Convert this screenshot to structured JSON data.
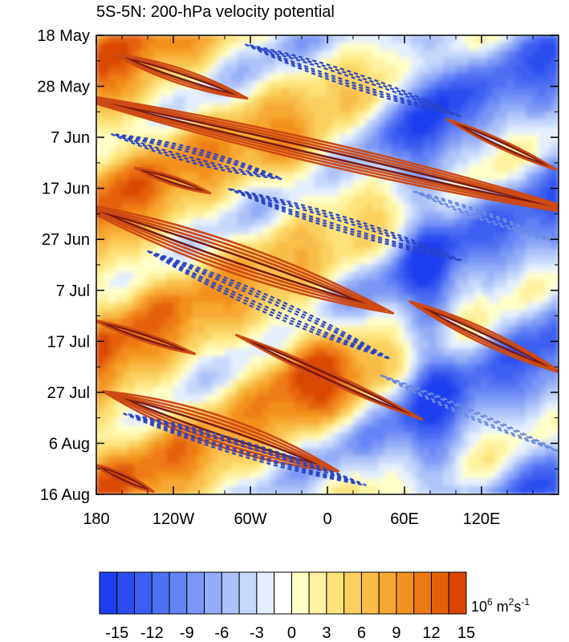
{
  "chart_data": {
    "type": "heatmap",
    "title": "5S-5N: 200-hPa velocity potential",
    "xlabel": "",
    "ylabel": "",
    "x_axis": {
      "ticks": [
        {
          "value": 180,
          "label": "180"
        },
        {
          "value": 240,
          "label": "120W"
        },
        {
          "value": 300,
          "label": "60W"
        },
        {
          "value": 360,
          "label": "0"
        },
        {
          "value": 420,
          "label": "60E"
        },
        {
          "value": 480,
          "label": "120E"
        }
      ],
      "range": [
        180,
        540
      ]
    },
    "y_axis": {
      "ticks": [
        {
          "value": 0,
          "label": "18 May"
        },
        {
          "value": 10,
          "label": "28 May"
        },
        {
          "value": 20,
          "label": "7 Jun"
        },
        {
          "value": 30,
          "label": "17 Jun"
        },
        {
          "value": 40,
          "label": "27 Jun"
        },
        {
          "value": 50,
          "label": "7 Jul"
        },
        {
          "value": 60,
          "label": "17 Jul"
        },
        {
          "value": 70,
          "label": "27 Jul"
        },
        {
          "value": 80,
          "label": "6 Aug"
        },
        {
          "value": 90,
          "label": "16 Aug"
        }
      ],
      "range": [
        0,
        90
      ]
    },
    "colorbar": {
      "levels": [
        -15,
        -13.5,
        -12,
        -10.5,
        -9,
        -7.5,
        -6,
        -4.5,
        -3,
        -1.5,
        0,
        1.5,
        3,
        4.5,
        6,
        7.5,
        9,
        10.5,
        12,
        13.5,
        15
      ],
      "labels": [
        "-15",
        "-12",
        "-9",
        "-6",
        "-3",
        "0",
        "3",
        "6",
        "9",
        "12",
        "15"
      ],
      "colors": [
        "#1d3ff0",
        "#2a4ef0",
        "#3a5ef2",
        "#4e70f2",
        "#6484f4",
        "#7c98f6",
        "#94acf7",
        "#aec2f9",
        "#c8d8fb",
        "#e4eefd",
        "#ffffff",
        "#ffffc8",
        "#fff2a0",
        "#fde27a",
        "#fbd060",
        "#f9bd48",
        "#f7a830",
        "#f2921e",
        "#ec7a12",
        "#e46008",
        "#da4602"
      ],
      "unit_base": "10",
      "unit_exp1": "6",
      "unit_mid": " m",
      "unit_exp2": "2",
      "unit_s": "s",
      "unit_exp3": "-1"
    },
    "grid": false,
    "legend": "none",
    "contours": {
      "positive_color": "#cc4a14",
      "negative_color": "#2a46c8"
    }
  }
}
